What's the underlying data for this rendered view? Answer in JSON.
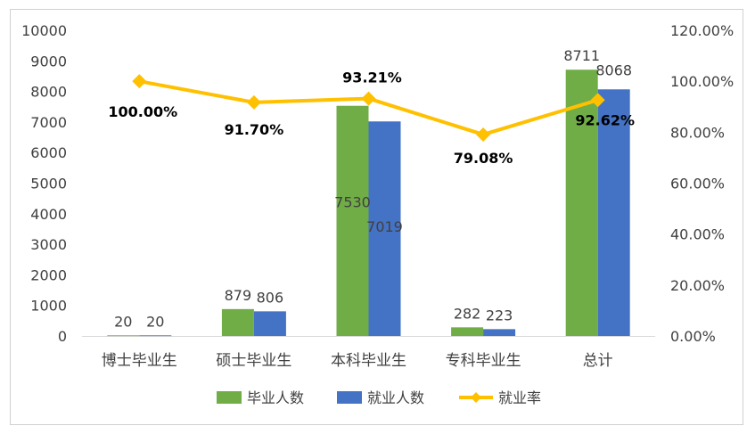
{
  "chart_data": {
    "type": "bar",
    "categories": [
      "博士毕业生",
      "硕士毕业生",
      "本科毕业生",
      "专科毕业生",
      "总计"
    ],
    "series": [
      {
        "name": "毕业人数",
        "type": "bar",
        "axis": "left",
        "color": "#70ad47",
        "values": [
          20,
          879,
          7530,
          282,
          8711
        ]
      },
      {
        "name": "就业人数",
        "type": "bar",
        "axis": "left",
        "color": "#4472c4",
        "values": [
          20,
          806,
          7019,
          223,
          8068
        ]
      },
      {
        "name": "就业率",
        "type": "line",
        "axis": "right",
        "color": "#ffc000",
        "marker": "diamond",
        "values": [
          1.0,
          0.917,
          0.9321,
          0.7908,
          0.9262
        ]
      }
    ],
    "bar_value_labels": {
      "毕业人数": [
        "20",
        "879",
        "7530",
        "282",
        "8711"
      ],
      "就业人数": [
        "20",
        "806",
        "7019",
        "223",
        "8068"
      ]
    },
    "rate_value_labels": [
      "100.00%",
      "91.70%",
      "93.21%",
      "79.08%",
      "92.62%"
    ],
    "y_left": {
      "range": [
        0,
        10000
      ],
      "ticks": [
        "0",
        "1000",
        "2000",
        "3000",
        "4000",
        "5000",
        "6000",
        "7000",
        "8000",
        "9000",
        "10000"
      ]
    },
    "y_right": {
      "range": [
        0,
        1.2
      ],
      "ticks": [
        "0.00%",
        "20.00%",
        "40.00%",
        "60.00%",
        "80.00%",
        "100.00%",
        "120.00%"
      ]
    },
    "title": "",
    "xlabel": "",
    "ylabel": "",
    "grid": false,
    "legend_position": "bottom"
  }
}
